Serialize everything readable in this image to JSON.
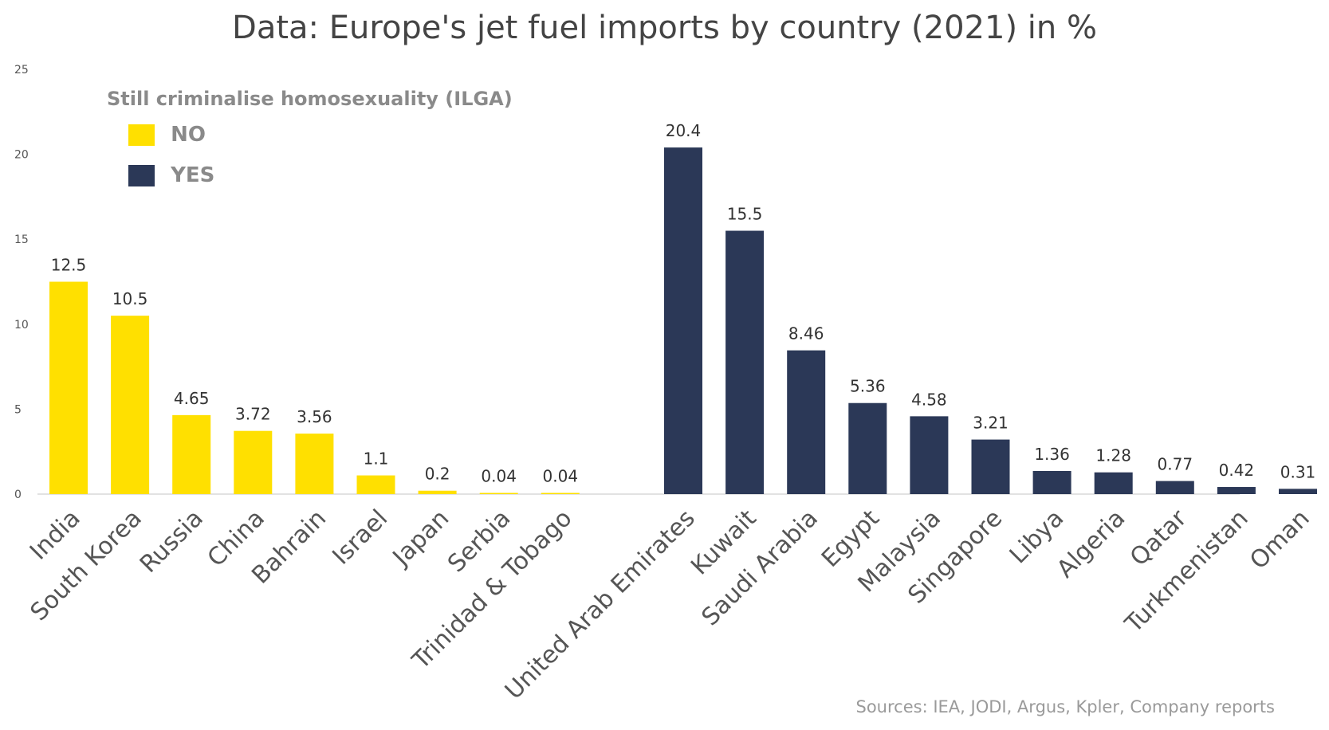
{
  "title": "Data: Europe's jet fuel imports by country (2021) in %",
  "source": "Sources: IEA, JODI, Argus, Kpler, Company reports",
  "colors": {
    "no": "#FFE000",
    "yes": "#2B3857",
    "axis": "#d9d9d9",
    "label": "#333333",
    "tick": "#555555",
    "category": "#555555"
  },
  "legend": {
    "title": "Still criminalise homosexuality (ILGA)",
    "items": [
      {
        "label": "NO",
        "color": "#FFE000"
      },
      {
        "label": "YES",
        "color": "#2B3857"
      }
    ]
  },
  "chart_data": {
    "type": "bar",
    "title": "Data: Europe's jet fuel imports by country (2021) in %",
    "ylim": [
      0,
      25
    ],
    "yticks": [
      0,
      5,
      10,
      15,
      20,
      25
    ],
    "grid": false,
    "legend_position": "top-left",
    "categories": [
      "India",
      "South Korea",
      "Russia",
      "China",
      "Bahrain",
      "Israel",
      "Japan",
      "Serbia",
      "Trinidad & Tobago",
      "",
      "United Arab Emirates",
      "Kuwait",
      "Saudi Arabia",
      "Egypt",
      "Malaysia",
      "Singapore",
      "Libya",
      "Algeria",
      "Qatar",
      "Turkmenistan",
      "Oman"
    ],
    "series": [
      {
        "name": "NO",
        "color": "#FFE000",
        "values": [
          12.5,
          10.5,
          4.65,
          3.72,
          3.56,
          1.1,
          0.2,
          0.04,
          0.04,
          null,
          null,
          null,
          null,
          null,
          null,
          null,
          null,
          null,
          null,
          null,
          null
        ]
      },
      {
        "name": "YES",
        "color": "#2B3857",
        "values": [
          null,
          null,
          null,
          null,
          null,
          null,
          null,
          null,
          null,
          null,
          20.4,
          15.5,
          8.46,
          5.36,
          4.58,
          3.21,
          1.36,
          1.28,
          0.77,
          0.42,
          0.31
        ]
      }
    ]
  }
}
